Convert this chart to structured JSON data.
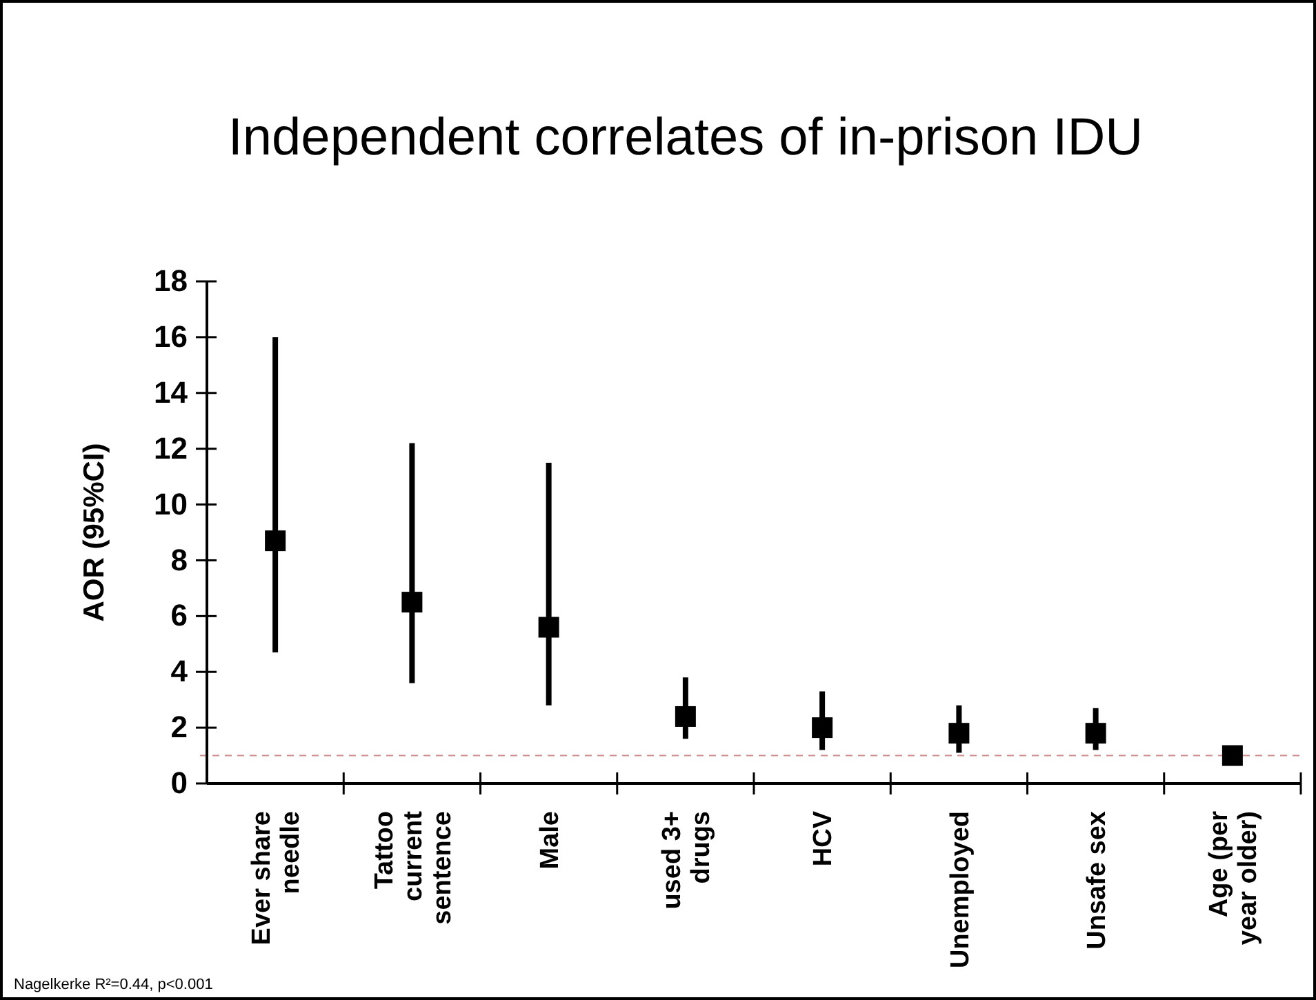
{
  "chart_data": {
    "type": "scatter",
    "title": "Independent correlates of in-prison IDU",
    "ylabel": "AOR (95%CI)",
    "categories": [
      "Ever share\nneedle",
      "Tattoo\ncurrent\nsentence",
      "Male",
      "used 3+\ndrugs",
      "HCV",
      "Unemployed",
      "Unsafe sex",
      "Age (per\nyear older)"
    ],
    "series": [
      {
        "color": "#000000",
        "values": [
          8.7,
          6.5,
          5.6,
          2.4,
          2.0,
          1.8,
          1.8,
          1.0
        ],
        "errors": [
          [
            4.7,
            16.0
          ],
          [
            3.6,
            12.2
          ],
          [
            2.8,
            11.5
          ],
          [
            1.6,
            3.8
          ],
          [
            1.2,
            3.3
          ],
          [
            1.1,
            2.8
          ],
          [
            1.2,
            2.7
          ],
          null
        ]
      }
    ],
    "marker": "square",
    "ylim": [
      0,
      18
    ],
    "yticks": [
      0,
      2,
      4,
      6,
      8,
      10,
      12,
      14,
      16,
      18
    ],
    "grid": false,
    "legend": false,
    "ref_lines": [
      {
        "axis": "y",
        "value": 1,
        "color": "#d09090",
        "line_style": "dashed"
      }
    ],
    "annotations": [
      "Nagelkerke R²=0.44, p<0.001"
    ]
  }
}
